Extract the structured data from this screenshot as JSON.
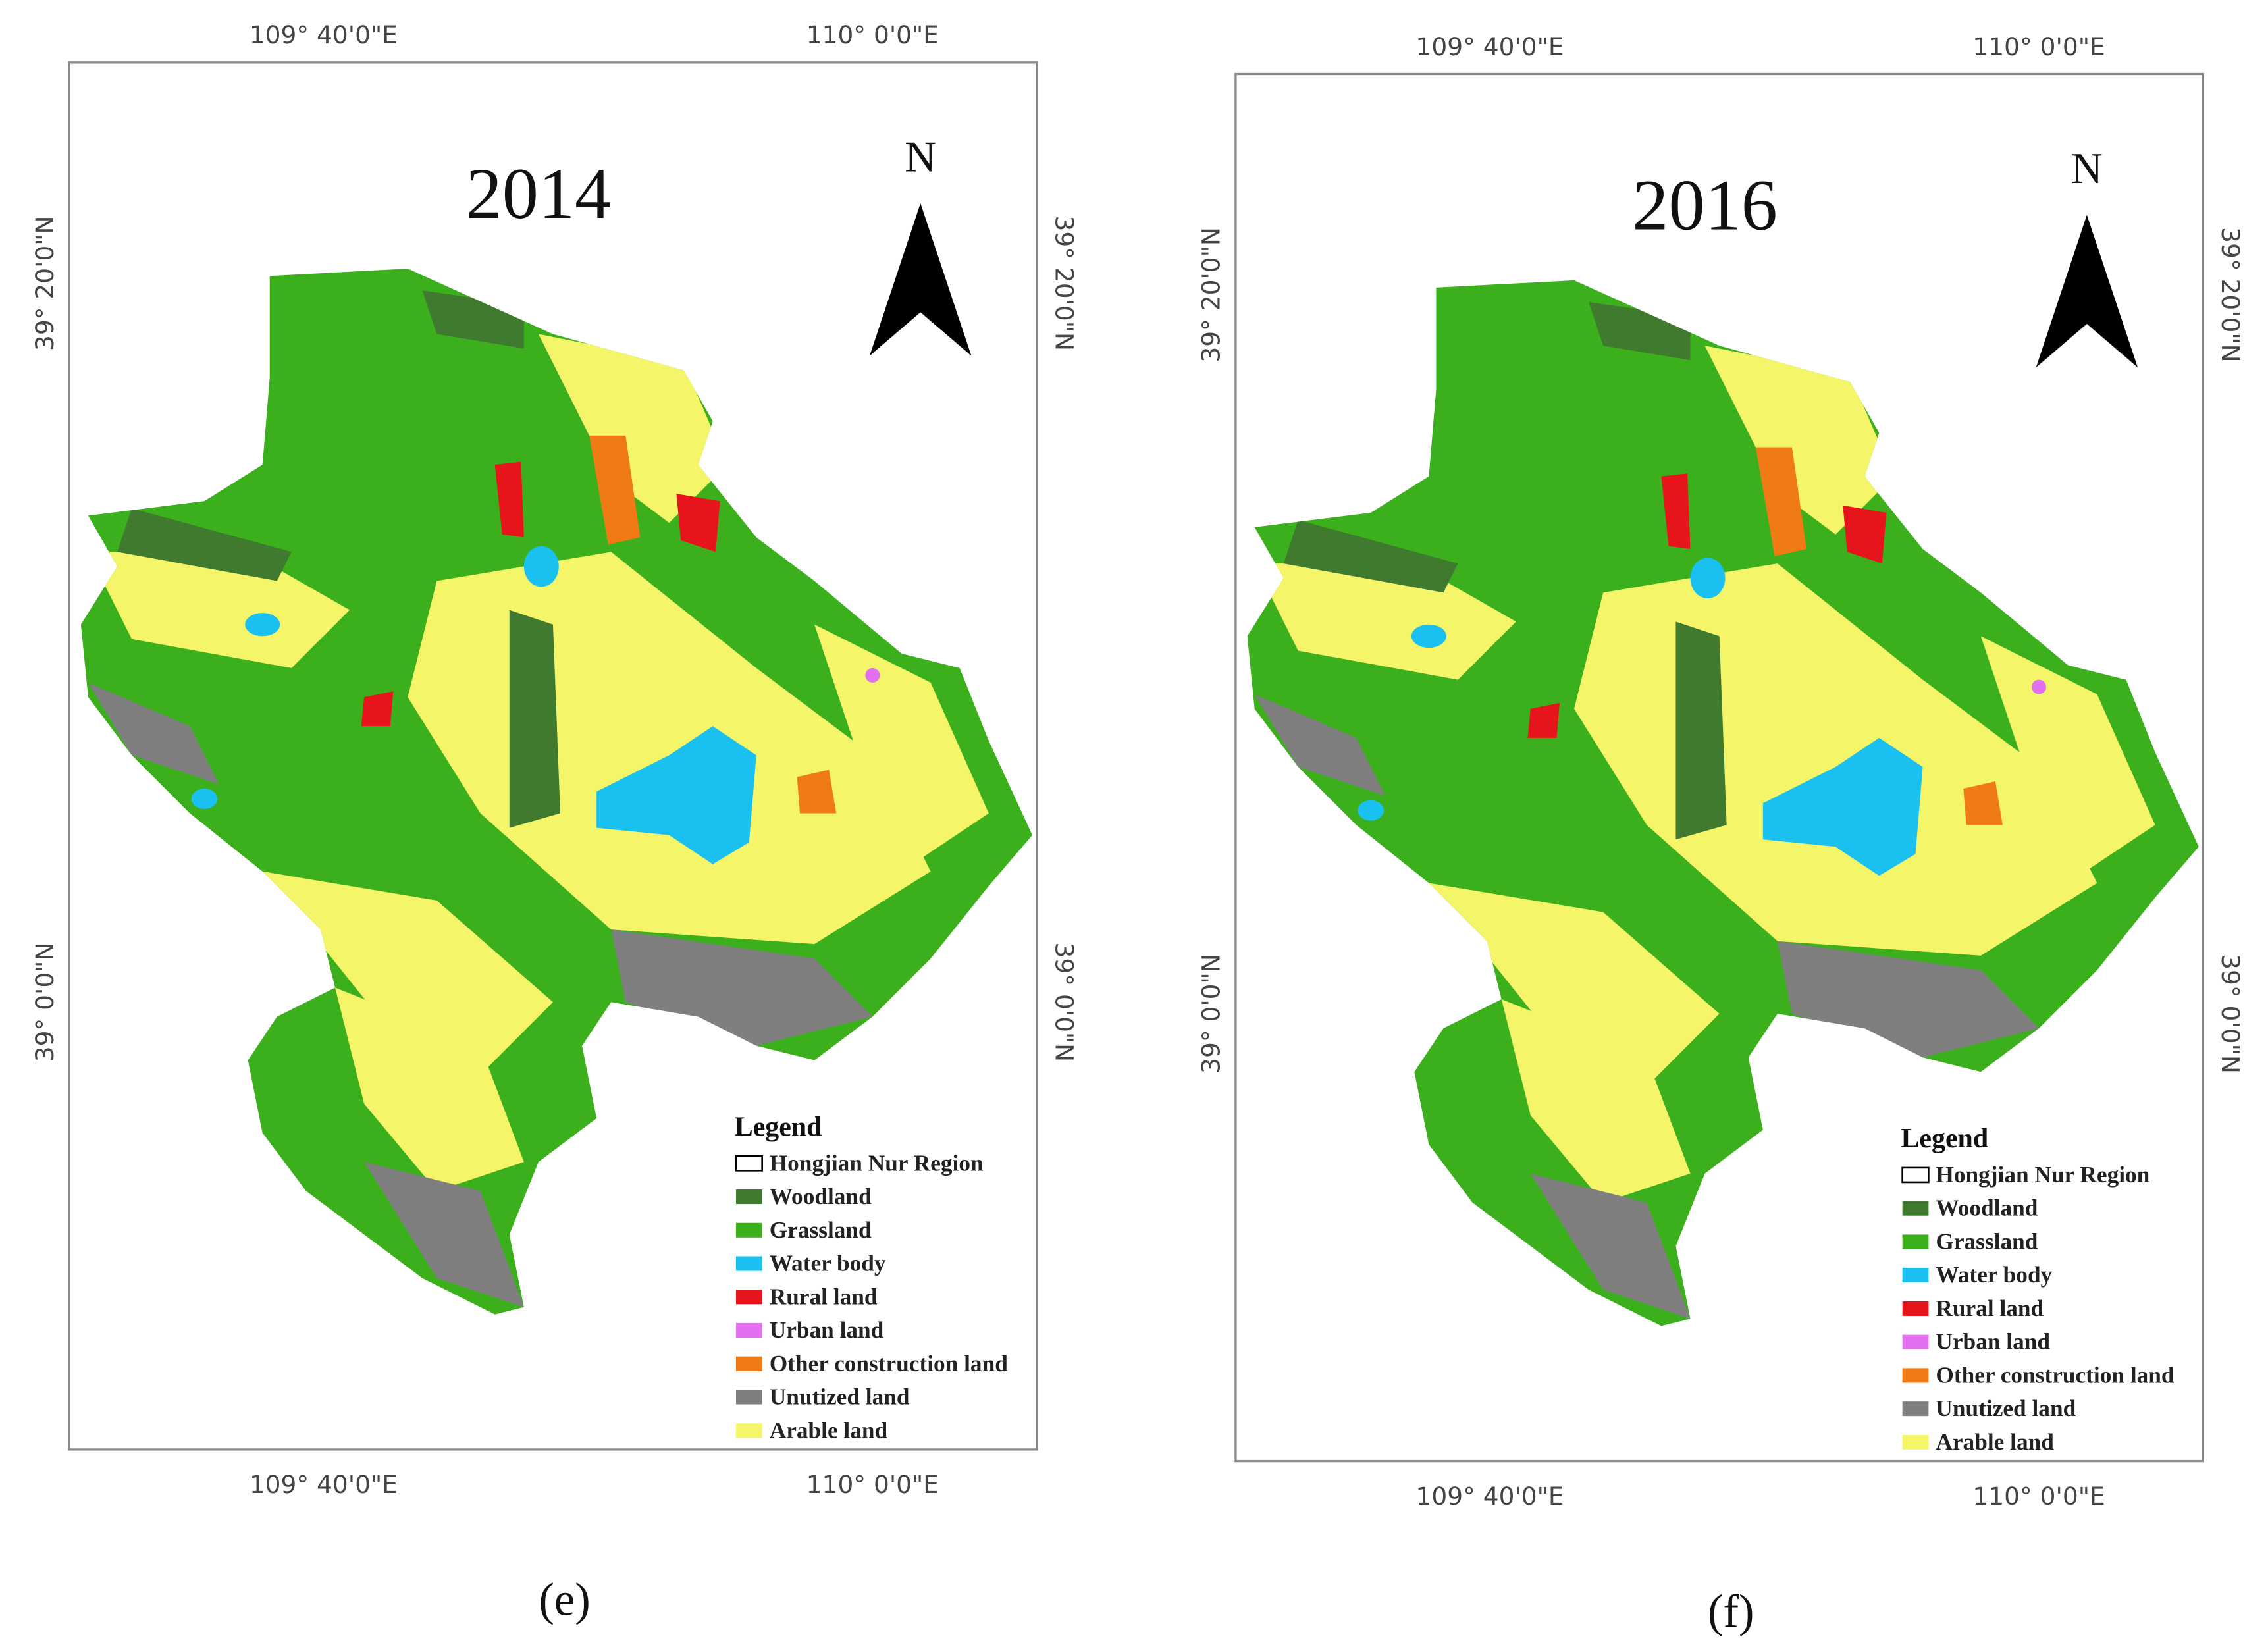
{
  "panels": [
    {
      "year": "2014",
      "caption": "(e)",
      "top_labels": [
        "109° 40'0\"E",
        "110° 0'0\"E"
      ],
      "bottom_labels": [
        "109° 40'0\"E",
        "110° 0'0\"E"
      ],
      "left_labels": [
        "39° 20'0\"N",
        "39° 0'0\"N"
      ],
      "right_labels": [
        "39° 20'0\"N",
        "39° 0'0\"N"
      ],
      "north": "N",
      "legend": {
        "title": "Legend",
        "items": [
          {
            "label": "Hongjian Nur Region",
            "color": "#ffffff"
          },
          {
            "label": "Woodland",
            "color": "#3f7a2e"
          },
          {
            "label": "Grassland",
            "color": "#3cb01c"
          },
          {
            "label": "Water body",
            "color": "#19c0f0"
          },
          {
            "label": "Rural land",
            "color": "#e8141c"
          },
          {
            "label": "Urban land",
            "color": "#e070f0"
          },
          {
            "label": "Other construction land",
            "color": "#f07a14"
          },
          {
            "label": "Unutized land",
            "color": "#7f7f7f"
          },
          {
            "label": "Arable land",
            "color": "#f5f56a"
          }
        ]
      }
    },
    {
      "year": "2016",
      "caption": "(f)",
      "top_labels": [
        "109° 40'0\"E",
        "110° 0'0\"E"
      ],
      "bottom_labels": [
        "109° 40'0\"E",
        "110° 0'0\"E"
      ],
      "left_labels": [
        "39° 20'0\"N",
        "39° 0'0\"N"
      ],
      "right_labels": [
        "39° 20'0\"N",
        "39° 0'0\"N"
      ],
      "north": "N",
      "legend": {
        "title": "Legend",
        "items": [
          {
            "label": "Hongjian Nur Region",
            "color": "#ffffff"
          },
          {
            "label": "Woodland",
            "color": "#3f7a2e"
          },
          {
            "label": "Grassland",
            "color": "#3cb01c"
          },
          {
            "label": "Water body",
            "color": "#19c0f0"
          },
          {
            "label": "Rural land",
            "color": "#e8141c"
          },
          {
            "label": "Urban land",
            "color": "#e070f0"
          },
          {
            "label": "Other construction land",
            "color": "#f07a14"
          },
          {
            "label": "Unutized land",
            "color": "#7f7f7f"
          },
          {
            "label": "Arable land",
            "color": "#f5f56a"
          }
        ]
      }
    }
  ]
}
